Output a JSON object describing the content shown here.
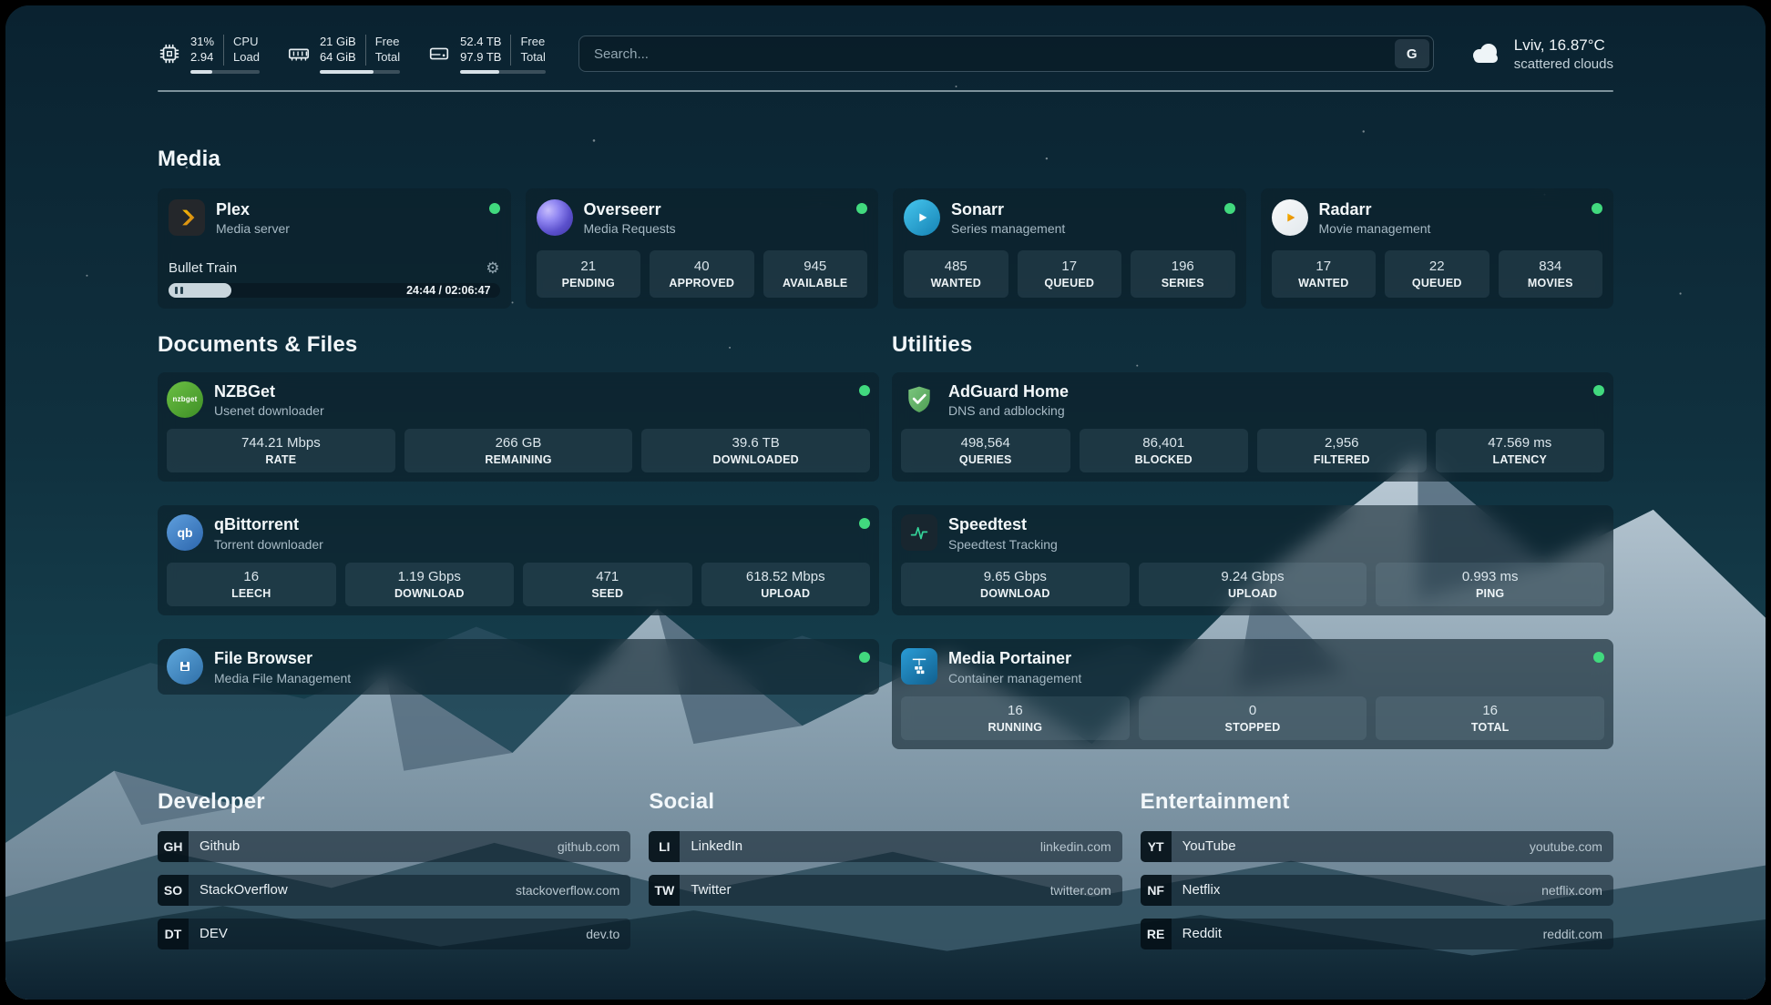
{
  "topbar": {
    "cpu": {
      "value_top": "31%",
      "value_bottom": "2.94",
      "label_top": "CPU",
      "label_bottom": "Load",
      "bar_percent": 31
    },
    "memory": {
      "value_top": "21 GiB",
      "value_bottom": "64 GiB",
      "label_top": "Free",
      "label_bottom": "Total",
      "bar_percent": 67
    },
    "disk": {
      "value_top": "52.4 TB",
      "value_bottom": "97.9 TB",
      "label_top": "Free",
      "label_bottom": "Total",
      "bar_percent": 46
    },
    "search": {
      "placeholder": "Search...",
      "button_label": "G"
    },
    "weather": {
      "location": "Lviv, 16.87°C",
      "condition": "scattered clouds"
    }
  },
  "sections": {
    "media": {
      "title": "Media"
    },
    "documents": {
      "title": "Documents & Files"
    },
    "utilities": {
      "title": "Utilities"
    },
    "developer": {
      "title": "Developer"
    },
    "social": {
      "title": "Social"
    },
    "entertainment": {
      "title": "Entertainment"
    }
  },
  "apps": {
    "plex": {
      "name": "Plex",
      "subtitle": "Media server",
      "now_playing": {
        "title": "Bullet Train",
        "time": "24:44 / 02:06:47",
        "progress_percent": 19
      }
    },
    "overseerr": {
      "name": "Overseerr",
      "subtitle": "Media Requests",
      "stats": [
        {
          "value": "21",
          "label": "PENDING"
        },
        {
          "value": "40",
          "label": "APPROVED"
        },
        {
          "value": "945",
          "label": "AVAILABLE"
        }
      ]
    },
    "sonarr": {
      "name": "Sonarr",
      "subtitle": "Series management",
      "stats": [
        {
          "value": "485",
          "label": "WANTED"
        },
        {
          "value": "17",
          "label": "QUEUED"
        },
        {
          "value": "196",
          "label": "SERIES"
        }
      ]
    },
    "radarr": {
      "name": "Radarr",
      "subtitle": "Movie management",
      "stats": [
        {
          "value": "17",
          "label": "WANTED"
        },
        {
          "value": "22",
          "label": "QUEUED"
        },
        {
          "value": "834",
          "label": "MOVIES"
        }
      ]
    },
    "nzbget": {
      "name": "NZBGet",
      "subtitle": "Usenet downloader",
      "stats": [
        {
          "value": "744.21 Mbps",
          "label": "RATE"
        },
        {
          "value": "266 GB",
          "label": "REMAINING"
        },
        {
          "value": "39.6 TB",
          "label": "DOWNLOADED"
        }
      ]
    },
    "qbittorrent": {
      "name": "qBittorrent",
      "subtitle": "Torrent downloader",
      "stats": [
        {
          "value": "16",
          "label": "LEECH"
        },
        {
          "value": "1.19 Gbps",
          "label": "DOWNLOAD"
        },
        {
          "value": "471",
          "label": "SEED"
        },
        {
          "value": "618.52 Mbps",
          "label": "UPLOAD"
        }
      ]
    },
    "filebrowser": {
      "name": "File Browser",
      "subtitle": "Media File Management"
    },
    "adguard": {
      "name": "AdGuard Home",
      "subtitle": "DNS and adblocking",
      "stats": [
        {
          "value": "498,564",
          "label": "QUERIES"
        },
        {
          "value": "86,401",
          "label": "BLOCKED"
        },
        {
          "value": "2,956",
          "label": "FILTERED"
        },
        {
          "value": "47.569 ms",
          "label": "LATENCY"
        }
      ]
    },
    "speedtest": {
      "name": "Speedtest",
      "subtitle": "Speedtest Tracking",
      "stats": [
        {
          "value": "9.65 Gbps",
          "label": "DOWNLOAD"
        },
        {
          "value": "9.24 Gbps",
          "label": "UPLOAD"
        },
        {
          "value": "0.993 ms",
          "label": "PING"
        }
      ]
    },
    "portainer": {
      "name": "Media Portainer",
      "subtitle": "Container management",
      "stats": [
        {
          "value": "16",
          "label": "RUNNING"
        },
        {
          "value": "0",
          "label": "STOPPED"
        },
        {
          "value": "16",
          "label": "TOTAL"
        }
      ]
    }
  },
  "bookmarks": {
    "developer": [
      {
        "abbr": "GH",
        "label": "Github",
        "url": "github.com"
      },
      {
        "abbr": "SO",
        "label": "StackOverflow",
        "url": "stackoverflow.com"
      },
      {
        "abbr": "DT",
        "label": "DEV",
        "url": "dev.to"
      }
    ],
    "social": [
      {
        "abbr": "LI",
        "label": "LinkedIn",
        "url": "linkedin.com"
      },
      {
        "abbr": "TW",
        "label": "Twitter",
        "url": "twitter.com"
      }
    ],
    "entertainment": [
      {
        "abbr": "YT",
        "label": "YouTube",
        "url": "youtube.com"
      },
      {
        "abbr": "NF",
        "label": "Netflix",
        "url": "netflix.com"
      },
      {
        "abbr": "RE",
        "label": "Reddit",
        "url": "reddit.com"
      }
    ]
  },
  "icons": {
    "gear": "⚙",
    "nzbget_text": "nzbget",
    "qbittorrent_text": "qb"
  },
  "colors": {
    "status_online": "#41d97e",
    "plex_accent": "#e5a00d"
  }
}
